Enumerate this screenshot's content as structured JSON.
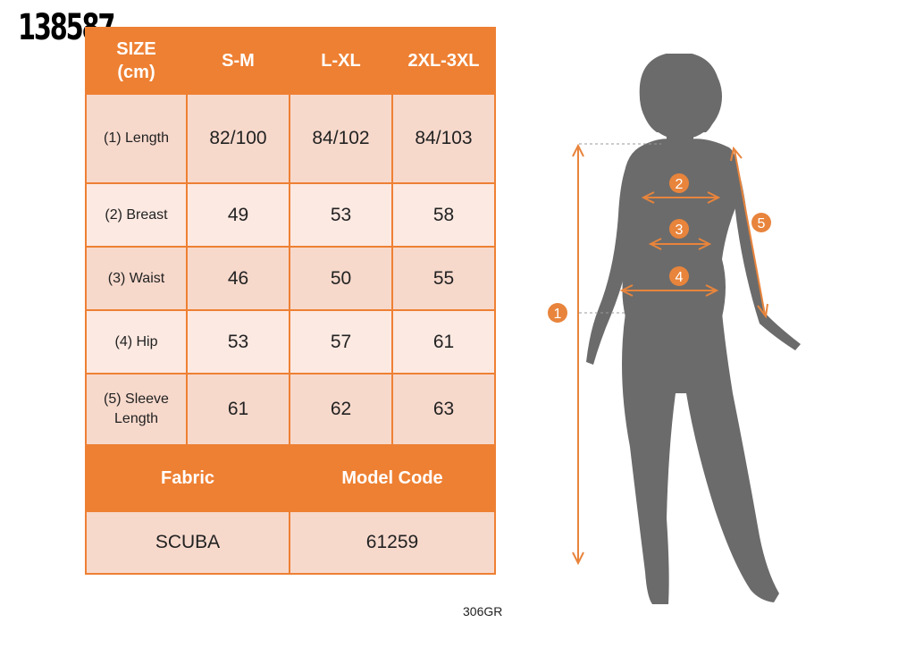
{
  "product_code": "138587",
  "table": {
    "header": [
      "SIZE\n(cm)",
      "S-M",
      "L-XL",
      "2XL-3XL"
    ],
    "size_label_line1": "SIZE",
    "size_label_line2": "(cm)",
    "rows": [
      {
        "label": "(1) Length",
        "values": [
          "82/100",
          "84/102",
          "84/103"
        ]
      },
      {
        "label": "(2) Breast",
        "values": [
          "49",
          "53",
          "58"
        ]
      },
      {
        "label": "(3) Waist",
        "values": [
          "46",
          "50",
          "55"
        ]
      },
      {
        "label": "(4) Hip",
        "values": [
          "53",
          "57",
          "61"
        ]
      },
      {
        "label_line1": "(5) Sleeve",
        "label_line2": "Length",
        "values": [
          "61",
          "62",
          "63"
        ]
      }
    ],
    "fabric_label": "Fabric",
    "model_code_label": "Model Code",
    "fabric_value": "SCUBA",
    "model_code_value": "61259"
  },
  "figure_markers": [
    "1",
    "2",
    "3",
    "4",
    "5"
  ],
  "footer_code": "306GR",
  "colors": {
    "accent": "#ee8033",
    "row_dark": "#f7d9cc",
    "row_light": "#fce9e2",
    "silhouette": "#6b6b6b"
  }
}
